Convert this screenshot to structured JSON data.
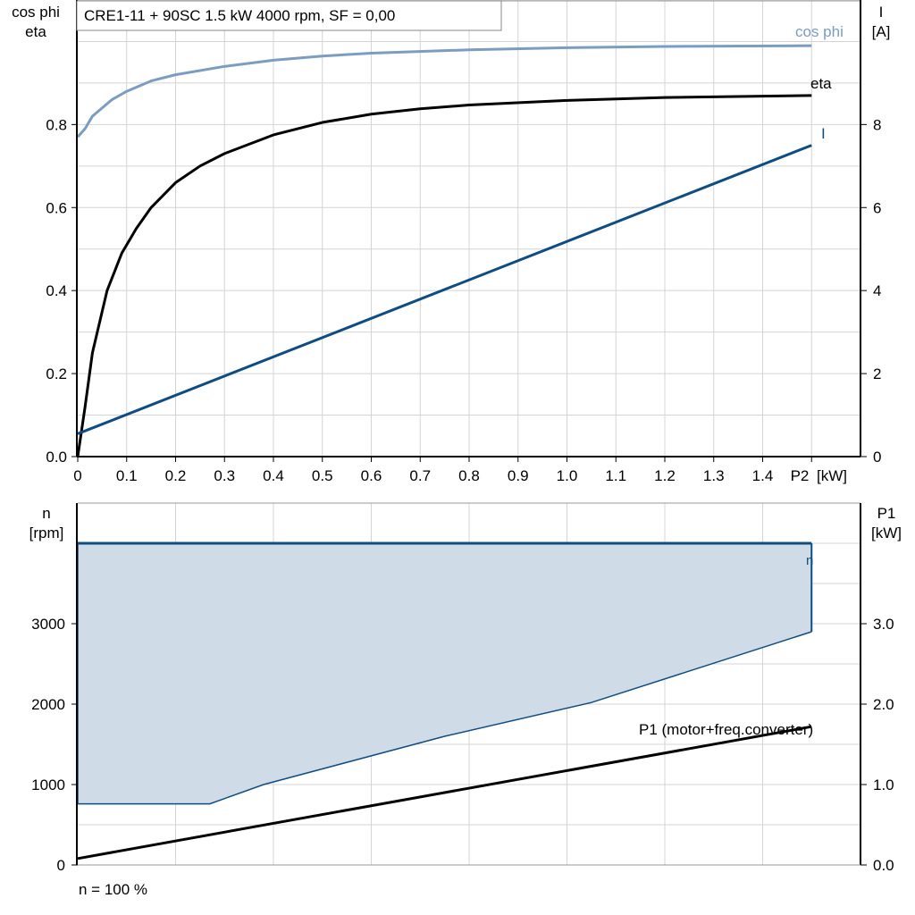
{
  "chart_data": [
    {
      "type": "line",
      "title": "CRE1-11 + 90SC   1.5 kW   4000 rpm, SF = 0,00",
      "xlabel": "P2 [kW]",
      "xlabel_name": "P2",
      "xlabel_unit": "[kW]",
      "ylabel_left": [
        "cos phi",
        "eta"
      ],
      "ylabel_right": [
        "I",
        "[A]"
      ],
      "xlim": [
        0,
        1.6
      ],
      "ylim_left": [
        0,
        1.1
      ],
      "ylim_right": [
        0,
        11
      ],
      "grid": true,
      "x_ticks": [
        "0",
        "0.1",
        "0.2",
        "0.3",
        "0.4",
        "0.5",
        "0.6",
        "0.7",
        "0.8",
        "0.9",
        "1.0",
        "1.1",
        "1.2",
        "1.3",
        "1.4"
      ],
      "y_ticks_left": [
        "0.0",
        "0.2",
        "0.4",
        "0.6",
        "0.8"
      ],
      "y_ticks_right": [
        "0",
        "2",
        "4",
        "6",
        "8"
      ],
      "series": [
        {
          "name": "cos phi",
          "axis": "left",
          "color": "#7b9dbf",
          "x": [
            0,
            0.015,
            0.03,
            0.05,
            0.07,
            0.1,
            0.15,
            0.2,
            0.3,
            0.4,
            0.5,
            0.6,
            0.8,
            1.0,
            1.2,
            1.5
          ],
          "y": [
            0.77,
            0.79,
            0.82,
            0.84,
            0.86,
            0.88,
            0.905,
            0.92,
            0.94,
            0.955,
            0.965,
            0.972,
            0.98,
            0.985,
            0.988,
            0.99
          ]
        },
        {
          "name": "eta",
          "axis": "left",
          "color": "#000000",
          "x": [
            0,
            0.015,
            0.03,
            0.06,
            0.09,
            0.12,
            0.15,
            0.2,
            0.25,
            0.3,
            0.4,
            0.5,
            0.6,
            0.7,
            0.8,
            1.0,
            1.2,
            1.5
          ],
          "y": [
            0,
            0.12,
            0.25,
            0.4,
            0.49,
            0.55,
            0.6,
            0.66,
            0.7,
            0.73,
            0.775,
            0.805,
            0.825,
            0.838,
            0.847,
            0.858,
            0.865,
            0.87
          ]
        },
        {
          "name": "I",
          "axis": "right",
          "color": "#0f4c81",
          "x": [
            0,
            1.5
          ],
          "y": [
            0.55,
            7.5
          ]
        }
      ]
    },
    {
      "type": "area",
      "xlim": [
        0,
        1.6
      ],
      "ylabel_left": [
        "n",
        "[rpm]"
      ],
      "ylabel_right": [
        "P1",
        "[kW]"
      ],
      "ylim_left": [
        0,
        4500
      ],
      "ylim_right": [
        0,
        4.5
      ],
      "grid": true,
      "y_ticks_left": [
        "0",
        "1000",
        "2000",
        "3000"
      ],
      "y_ticks_right": [
        "0.0",
        "1.0",
        "2.0",
        "3.0"
      ],
      "footnote": "n = 100 %",
      "series": [
        {
          "name": "n",
          "axis": "left",
          "color": "#0f4c81",
          "fill": "#cfdbe7",
          "upper": {
            "x": [
              0,
              1.5,
              1.5
            ],
            "y": [
              4000,
              4000,
              2900
            ]
          },
          "lower": {
            "x": [
              0,
              0.27,
              0.38,
              0.75,
              1.05,
              1.5
            ],
            "y": [
              760,
              760,
              1000,
              1600,
              2020,
              2900
            ]
          }
        },
        {
          "name": "P1 (motor+freq.converter)",
          "axis": "right",
          "color": "#000000",
          "x": [
            0,
            1.5
          ],
          "y": [
            0.08,
            1.72
          ]
        }
      ]
    }
  ]
}
